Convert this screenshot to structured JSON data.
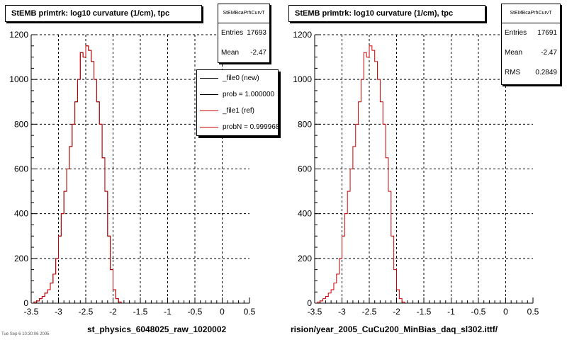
{
  "chart_data": [
    {
      "type": "histogram",
      "title": "StEMB primtrk: log10 curvature (1/cm), tpc",
      "xlabel": "st_physics_6048025_raw_1020002",
      "xlim": [
        -3.5,
        0.5
      ],
      "ylim": [
        0,
        1200
      ],
      "xticks": [
        "-3.5",
        "-3",
        "-2.5",
        "-2",
        "-1.5",
        "-1",
        "-0.5",
        "0",
        "0.5"
      ],
      "yticks": [
        "0",
        "200",
        "400",
        "600",
        "800",
        "1000",
        "1200"
      ],
      "grid": true,
      "stats": {
        "name": "StEMBcaPrhCurvT",
        "rows": [
          {
            "label": "Entries",
            "value": "17693"
          },
          {
            "label": "Mean",
            "value": "-2.47"
          }
        ]
      },
      "legend": {
        "placement": "top-right",
        "entries": [
          {
            "label": "_file0 (new)",
            "color": "#000000"
          },
          {
            "label": "prob = 1.000000",
            "color": "#000000"
          },
          {
            "label": "_file1 (ref)",
            "color": "#cc0000"
          },
          {
            "label": "probN = 0.999968",
            "color": "#cc0000"
          }
        ]
      },
      "series": [
        {
          "color": "#000000",
          "bin_start": -3.45,
          "bin_width": 0.05,
          "values": [
            5,
            10,
            20,
            30,
            45,
            60,
            90,
            130,
            200,
            300,
            400,
            500,
            600,
            700,
            800,
            900,
            1000,
            1120,
            1100,
            1150,
            1130,
            1080,
            1000,
            900,
            800,
            650,
            500,
            300,
            150,
            60,
            20,
            5
          ]
        },
        {
          "color": "#cc0000",
          "bin_start": -3.45,
          "bin_width": 0.05,
          "values": [
            5,
            10,
            20,
            30,
            45,
            60,
            90,
            130,
            200,
            300,
            400,
            500,
            600,
            700,
            800,
            900,
            1000,
            1120,
            1100,
            1150,
            1130,
            1080,
            1000,
            900,
            800,
            650,
            500,
            300,
            150,
            60,
            20,
            5
          ]
        }
      ]
    },
    {
      "type": "histogram",
      "title": "StEMB primtrk: log10 curvature (1/cm), tpc",
      "xlabel": "rision/year_2005_CuCu200_MinBias_daq_sl302.ittf/",
      "xlim": [
        -3.5,
        0.5
      ],
      "ylim": [
        0,
        1200
      ],
      "xticks": [
        "-3.5",
        "-3",
        "-2.5",
        "-2",
        "-1.5",
        "-1",
        "-0.5",
        "0",
        "0.5"
      ],
      "yticks": [
        "0",
        "200",
        "400",
        "600",
        "800",
        "1000",
        "1200"
      ],
      "grid": true,
      "stats": {
        "name": "StEMBcaPrhCurvT",
        "rows": [
          {
            "label": "Entries",
            "value": "17691"
          },
          {
            "label": "Mean",
            "value": "-2.47"
          },
          {
            "label": "RMS",
            "value": "0.2849"
          }
        ]
      },
      "series": [
        {
          "color": "#cc0000",
          "bin_start": -3.45,
          "bin_width": 0.05,
          "values": [
            5,
            10,
            20,
            30,
            45,
            60,
            90,
            130,
            200,
            300,
            400,
            500,
            600,
            700,
            800,
            900,
            1000,
            1120,
            1100,
            1150,
            1130,
            1080,
            1000,
            900,
            800,
            650,
            500,
            300,
            150,
            60,
            20,
            5
          ]
        }
      ]
    }
  ],
  "footer": "Tue Sep  6 10:30:06 2005"
}
